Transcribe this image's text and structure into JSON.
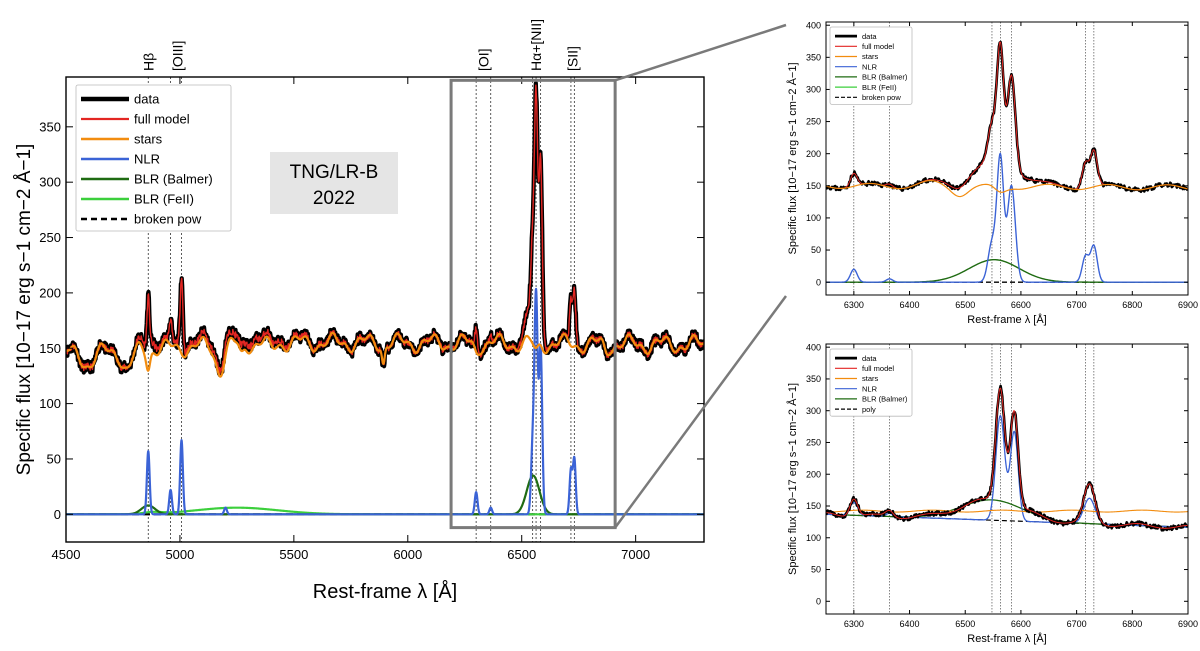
{
  "colors": {
    "data": "#000000",
    "full_model": "#e32622",
    "stars": "#f28c0f",
    "nlr": "#3b63d6",
    "blr_balmer": "#1f6b12",
    "blr_feii": "#3ccf3c",
    "broken_pow": "#000000",
    "poly": "#000000",
    "zoom_box": "#7a7a7a",
    "annotation_bg": "#e5e5e5"
  },
  "chart_data": [
    {
      "id": "main",
      "type": "line",
      "xlabel": "Rest-frame λ [Å]",
      "ylabel": "Specific flux [10−17 erg s−1 cm−2 Å−1]",
      "xlim": [
        4500,
        7300
      ],
      "ylim": [
        -25,
        395
      ],
      "xticks": [
        4500,
        5000,
        5500,
        6000,
        6500,
        7000
      ],
      "yticks": [
        0,
        50,
        100,
        150,
        200,
        250,
        300,
        350
      ],
      "annotation": [
        "TNG/LR-B",
        "2022"
      ],
      "line_markers": [
        {
          "label": "Hβ",
          "waves": [
            4861
          ]
        },
        {
          "label": "[OIII]",
          "waves": [
            4959,
            5007
          ]
        },
        {
          "label": "[OI]",
          "waves": [
            6300,
            6364
          ]
        },
        {
          "label": "Hα+[NII]",
          "waves": [
            6548,
            6563,
            6583
          ]
        },
        {
          "label": "[SII]",
          "waves": [
            6716,
            6731
          ]
        }
      ],
      "zoom_region": {
        "x": [
          6190,
          6910
        ],
        "y": [
          -12,
          392
        ]
      },
      "legend": [
        "data",
        "full model",
        "stars",
        "NLR",
        "BLR (Balmer)",
        "BLR (FeII)",
        "broken pow"
      ],
      "series": [
        {
          "name": "data",
          "x": [
            4500,
            4600,
            4700,
            4800,
            4861,
            4900,
            4959,
            5007,
            5100,
            5200,
            5300,
            5400,
            5500,
            5600,
            5700,
            5800,
            5900,
            6000,
            6100,
            6200,
            6300,
            6364,
            6400,
            6450,
            6500,
            6548,
            6563,
            6583,
            6620,
            6700,
            6731,
            6800,
            6900,
            7000,
            7100,
            7200,
            7300
          ],
          "y": [
            135,
            138,
            145,
            150,
            193,
            152,
            168,
            199,
            157,
            157,
            158,
            156,
            158,
            160,
            162,
            165,
            150,
            150,
            147,
            146,
            172,
            152,
            158,
            166,
            180,
            255,
            368,
            330,
            195,
            155,
            203,
            146,
            150,
            146,
            142,
            144,
            146
          ]
        },
        {
          "name": "stars",
          "x": [
            4500,
            4600,
            4700,
            4800,
            4900,
            5000,
            5100,
            5200,
            5300,
            5400,
            5500,
            5600,
            5700,
            5800,
            5900,
            6000,
            6100,
            6200,
            6300,
            6400,
            6500,
            6600,
            6700,
            6800,
            6900,
            7000,
            7100,
            7200,
            7300
          ],
          "y": [
            145,
            147,
            148,
            150,
            151,
            152,
            152,
            153,
            153,
            154,
            154,
            155,
            156,
            156,
            155,
            154,
            153,
            152,
            151,
            150,
            150,
            149,
            149,
            148,
            148,
            147,
            147,
            146,
            146
          ]
        },
        {
          "name": "NLR",
          "x": [
            4861,
            4959,
            5007,
            5200,
            6300,
            6364,
            6548,
            6563,
            6583,
            6716,
            6731
          ],
          "y": [
            57,
            22,
            67,
            6,
            20,
            6,
            60,
            195,
            150,
            40,
            57
          ]
        },
        {
          "name": "BLR (Balmer)",
          "x": [
            4861,
            6563
          ],
          "y": [
            8,
            35
          ]
        },
        {
          "name": "BLR (FeII)",
          "x": [
            5000,
            5250,
            5600
          ],
          "y": [
            2,
            6,
            1
          ]
        },
        {
          "name": "broken pow",
          "x": [
            4500,
            7300
          ],
          "y": [
            0,
            0
          ]
        }
      ]
    },
    {
      "id": "zoom-top",
      "type": "line",
      "xlabel": "Rest-frame λ [Å]",
      "ylabel": "Specific flux [10−17 erg s−1 cm−2 Å−1]",
      "xlim": [
        6250,
        6900
      ],
      "ylim": [
        -20,
        405
      ],
      "xticks": [
        6300,
        6400,
        6500,
        6600,
        6700,
        6800,
        6900
      ],
      "yticks": [
        0,
        50,
        100,
        150,
        200,
        250,
        300,
        350,
        400
      ],
      "vlines": [
        6300,
        6364,
        6548,
        6563,
        6583,
        6716,
        6731
      ],
      "legend": [
        "data",
        "full model",
        "stars",
        "NLR",
        "BLR (Balmer)",
        "BLR (FeII)",
        "broken pow"
      ]
    },
    {
      "id": "zoom-bottom",
      "type": "line",
      "xlabel": "Rest-frame λ [Å]",
      "ylabel": "Specific flux [10−17 erg s−1 cm−2 Å−1]",
      "xlim": [
        6250,
        6900
      ],
      "ylim": [
        -20,
        405
      ],
      "xticks": [
        6300,
        6400,
        6500,
        6600,
        6700,
        6800,
        6900
      ],
      "yticks": [
        0,
        50,
        100,
        150,
        200,
        250,
        300,
        350,
        400
      ],
      "vlines": [
        6300,
        6364,
        6548,
        6563,
        6583,
        6716,
        6731
      ],
      "legend": [
        "data",
        "full model",
        "stars",
        "NLR",
        "BLR (Balmer)",
        "poly"
      ]
    }
  ]
}
